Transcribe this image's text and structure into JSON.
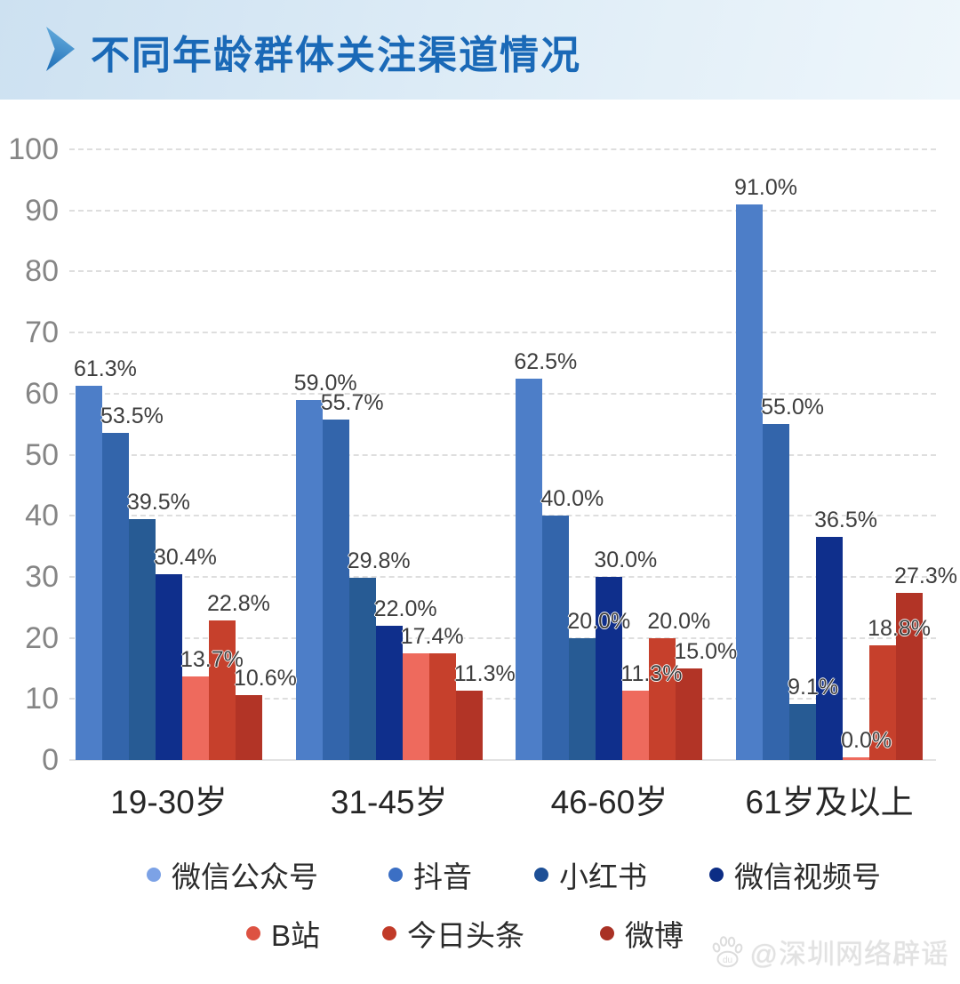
{
  "header": {
    "title": "不同年龄群体关注渠道情况"
  },
  "watermark": {
    "text": "@深圳网络辟谣",
    "icon": "baidu-paw-icon"
  },
  "chart_data": {
    "type": "bar",
    "title": "不同年龄群体关注渠道情况",
    "categories": [
      "19-30岁",
      "31-45岁",
      "46-60岁",
      "61岁及以上"
    ],
    "series": [
      {
        "id": "wechat-official-account",
        "name": "微信公众号",
        "color": "#4d7ec8",
        "legend_color": "#7ca2e6",
        "values": [
          61.3,
          59.0,
          62.5,
          91.0
        ],
        "labels": [
          "61.3%",
          "59.0%",
          "62.5%",
          "91.0%"
        ]
      },
      {
        "id": "douyin",
        "name": "抖音",
        "color": "#3365ab",
        "legend_color": "#3b6fc4",
        "values": [
          53.5,
          55.7,
          40.0,
          55.0
        ],
        "labels": [
          "53.5%",
          "55.7%",
          "40.0%",
          "55.0%"
        ]
      },
      {
        "id": "xiaohongshu",
        "name": "小红书",
        "color": "#275b94",
        "legend_color": "#1d4f96",
        "values": [
          39.5,
          29.8,
          20.0,
          9.1
        ],
        "labels": [
          "39.5%",
          "29.8%",
          "20.0%",
          "9.1%"
        ]
      },
      {
        "id": "wechat-video",
        "name": "微信视频号",
        "color": "#0f2f8c",
        "legend_color": "#0c2d85",
        "values": [
          30.4,
          22.0,
          30.0,
          36.5
        ],
        "labels": [
          "30.4%",
          "22.0%",
          "30.0%",
          "36.5%"
        ]
      },
      {
        "id": "bilibili",
        "name": "B站",
        "color": "#ee6a5d",
        "legend_color": "#dd5242",
        "values": [
          13.7,
          17.4,
          11.3,
          0.0
        ],
        "labels": [
          "13.7%",
          "17.4%",
          "11.3%",
          "0.0%"
        ]
      },
      {
        "id": "toutiao",
        "name": "今日头条",
        "color": "#c6402c",
        "legend_color": "#c13a28",
        "values": [
          22.8,
          17.4,
          20.0,
          18.8
        ],
        "labels": [
          "22.8%",
          "",
          "20.0%",
          "18.8%"
        ]
      },
      {
        "id": "weibo",
        "name": "微博",
        "color": "#b23426",
        "legend_color": "#a93125",
        "values": [
          10.6,
          11.3,
          15.0,
          27.3
        ],
        "labels": [
          "10.6%",
          "11.3%",
          "15.0%",
          "27.3%"
        ]
      }
    ],
    "yticks": [
      100,
      90,
      80,
      70,
      60,
      50,
      40,
      30,
      20,
      10,
      0
    ],
    "ylim": [
      0,
      100
    ],
    "grid": "horizontal dashed gridlines every 10",
    "legend_position": "bottom, two rows",
    "value_label_format": "percent, shown above each bar"
  },
  "legend": {
    "rows": [
      [
        0,
        1,
        2,
        3
      ],
      [
        4,
        5,
        6
      ]
    ]
  }
}
